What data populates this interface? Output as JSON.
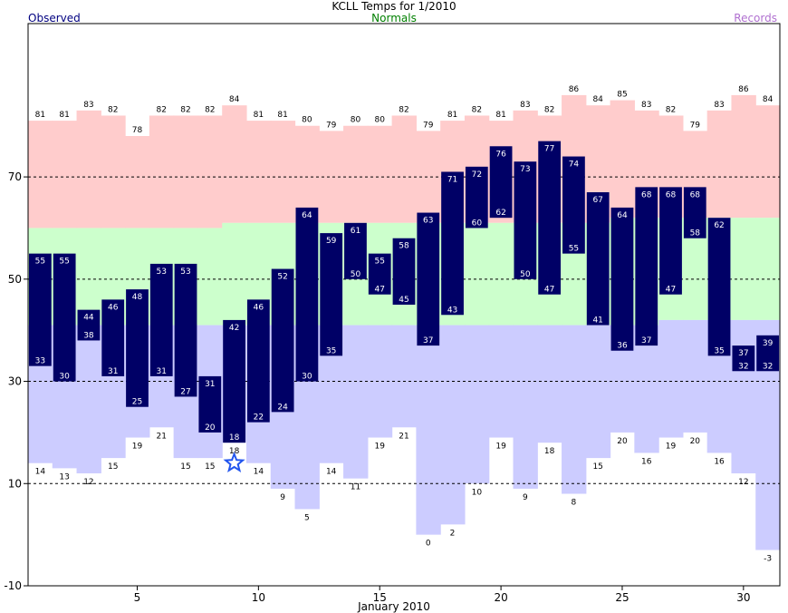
{
  "chart_data": {
    "type": "bar",
    "title": "KCLL Temps for 1/2010",
    "legend": {
      "observed": "Observed",
      "normals": "Normals",
      "records": "Records",
      "placement": "top"
    },
    "xlabel": "January 2010",
    "ylabel": "",
    "ylim": [
      -10,
      100
    ],
    "xlim": [
      0.5,
      31.5
    ],
    "yticks": [
      -10,
      10,
      30,
      50,
      70
    ],
    "xticks": [
      5,
      10,
      15,
      20,
      25,
      30
    ],
    "dashed_grid_y": [
      10,
      30,
      50,
      70
    ],
    "days": [
      1,
      2,
      3,
      4,
      5,
      6,
      7,
      8,
      9,
      10,
      11,
      12,
      13,
      14,
      15,
      16,
      17,
      18,
      19,
      20,
      21,
      22,
      23,
      24,
      25,
      26,
      27,
      28,
      29,
      30,
      31
    ],
    "series": [
      {
        "name": "Observed High",
        "values": [
          55,
          55,
          44,
          46,
          48,
          53,
          53,
          31,
          42,
          46,
          52,
          64,
          59,
          61,
          55,
          58,
          63,
          71,
          72,
          76,
          73,
          77,
          74,
          67,
          64,
          68,
          68,
          68,
          62,
          37,
          39
        ]
      },
      {
        "name": "Observed Low",
        "values": [
          33,
          30,
          38,
          31,
          25,
          31,
          27,
          20,
          18,
          22,
          24,
          30,
          35,
          50,
          47,
          45,
          37,
          43,
          60,
          62,
          50,
          47,
          55,
          41,
          36,
          37,
          47,
          58,
          35,
          32,
          32
        ]
      },
      {
        "name": "Normal High",
        "values": [
          60,
          60,
          60,
          60,
          60,
          60,
          60,
          60,
          61,
          61,
          61,
          61,
          61,
          61,
          61,
          61,
          61,
          61,
          61,
          61,
          61,
          61,
          61,
          61,
          62,
          62,
          62,
          62,
          62,
          62,
          62
        ]
      },
      {
        "name": "Normal Low",
        "values": [
          41,
          41,
          41,
          41,
          41,
          41,
          41,
          41,
          41,
          41,
          41,
          41,
          41,
          41,
          41,
          41,
          41,
          41,
          41,
          41,
          41,
          41,
          41,
          41,
          41,
          41,
          42,
          42,
          42,
          42,
          42
        ]
      },
      {
        "name": "Record High",
        "values": [
          81,
          81,
          83,
          82,
          78,
          82,
          82,
          82,
          84,
          81,
          81,
          80,
          79,
          80,
          80,
          82,
          79,
          81,
          82,
          81,
          83,
          82,
          86,
          84,
          85,
          83,
          82,
          79,
          83,
          86,
          84
        ]
      },
      {
        "name": "Record Low",
        "values": [
          14,
          13,
          12,
          15,
          19,
          21,
          15,
          15,
          18,
          14,
          9,
          5,
          14,
          11,
          19,
          21,
          0,
          2,
          10,
          19,
          9,
          18,
          8,
          15,
          20,
          16,
          19,
          20,
          16,
          12,
          -3
        ]
      }
    ],
    "marker": {
      "day": 9,
      "value": 14,
      "shape": "star"
    },
    "colors": {
      "record_high_fill": "#ffcccc",
      "normal_fill": "#ccffcc",
      "record_low_fill": "#ccccff",
      "observed_bar": "#000066",
      "observed_label": "#ffffff",
      "marker": "#2255ee",
      "grid": "#000000"
    }
  }
}
